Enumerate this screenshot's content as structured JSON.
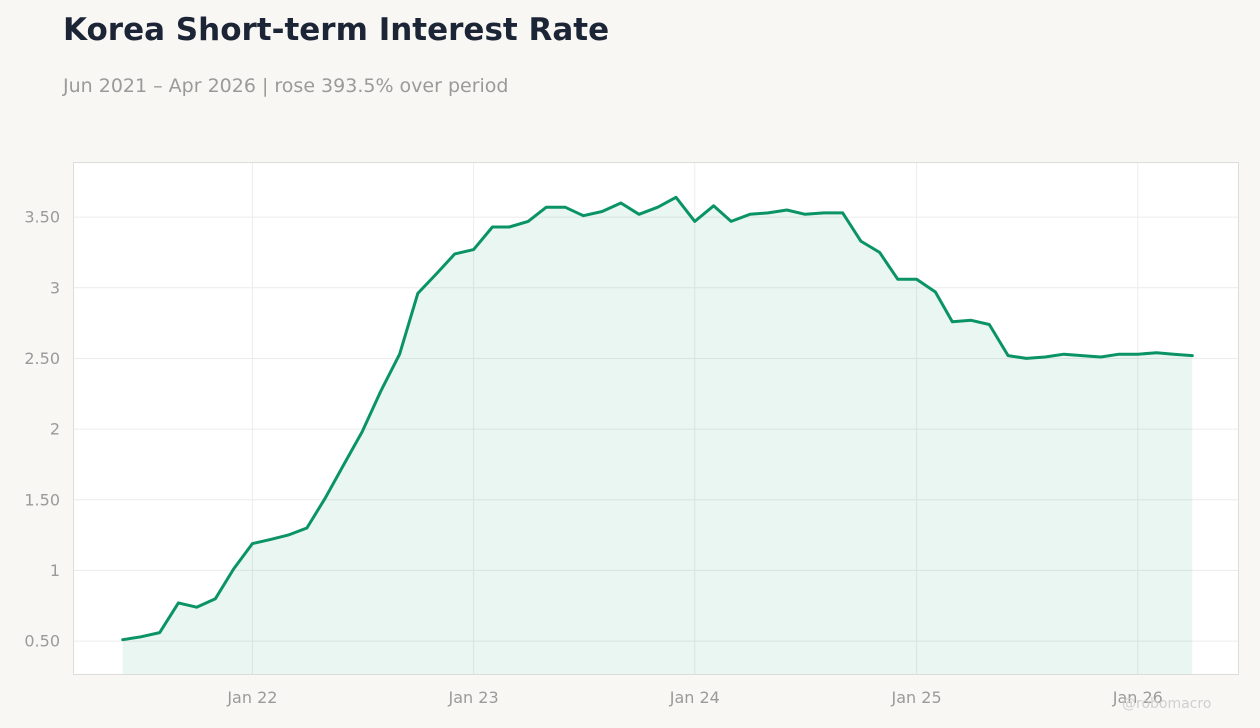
{
  "header": {
    "title": "Korea Short-term Interest Rate",
    "subtitle": "Jun 2021 – Apr 2026 | rose 393.5% over period"
  },
  "watermark": "@robomacro",
  "colors": {
    "line": "#0a9466",
    "fill": "#0a9466",
    "grid": "#ececec",
    "frame": "#dcdcdc"
  },
  "chart_data": {
    "type": "area",
    "title": "Korea Short-term Interest Rate",
    "subtitle": "Jun 2021 – Apr 2026 | rose 393.5% over period",
    "xlabel": "",
    "ylabel": "",
    "ylim": [
      0.26,
      3.89
    ],
    "xlim": [
      "2021-03-11",
      "2026-06-17"
    ],
    "grid": true,
    "x_ticks": [
      {
        "date": "2022-01-01",
        "label": "Jan 22"
      },
      {
        "date": "2023-01-01",
        "label": "Jan 23"
      },
      {
        "date": "2024-01-01",
        "label": "Jan 24"
      },
      {
        "date": "2025-01-01",
        "label": "Jan 25"
      },
      {
        "date": "2026-01-01",
        "label": "Jan 26"
      }
    ],
    "y_ticks": [
      {
        "value": 0.5,
        "label": "0.50"
      },
      {
        "value": 1,
        "label": "1"
      },
      {
        "value": 1.5,
        "label": "1.50"
      },
      {
        "value": 2,
        "label": "2"
      },
      {
        "value": 2.5,
        "label": "2.50"
      },
      {
        "value": 3,
        "label": "3"
      },
      {
        "value": 3.5,
        "label": "3.50"
      }
    ],
    "series": [
      {
        "points": [
          {
            "x": "2021-06-01",
            "y": 0.51
          },
          {
            "x": "2021-07-01",
            "y": 0.53
          },
          {
            "x": "2021-08-01",
            "y": 0.56
          },
          {
            "x": "2021-09-01",
            "y": 0.77
          },
          {
            "x": "2021-10-01",
            "y": 0.74
          },
          {
            "x": "2021-11-01",
            "y": 0.8
          },
          {
            "x": "2021-12-01",
            "y": 1.01
          },
          {
            "x": "2022-01-01",
            "y": 1.19
          },
          {
            "x": "2022-02-01",
            "y": 1.22
          },
          {
            "x": "2022-03-01",
            "y": 1.25
          },
          {
            "x": "2022-04-01",
            "y": 1.3
          },
          {
            "x": "2022-05-01",
            "y": 1.51
          },
          {
            "x": "2022-06-01",
            "y": 1.75
          },
          {
            "x": "2022-07-01",
            "y": 1.98
          },
          {
            "x": "2022-08-01",
            "y": 2.27
          },
          {
            "x": "2022-09-01",
            "y": 2.53
          },
          {
            "x": "2022-10-01",
            "y": 2.96
          },
          {
            "x": "2022-11-01",
            "y": 3.1
          },
          {
            "x": "2022-12-01",
            "y": 3.24
          },
          {
            "x": "2023-01-01",
            "y": 3.27
          },
          {
            "x": "2023-02-01",
            "y": 3.43
          },
          {
            "x": "2023-03-01",
            "y": 3.43
          },
          {
            "x": "2023-04-01",
            "y": 3.47
          },
          {
            "x": "2023-05-01",
            "y": 3.57
          },
          {
            "x": "2023-06-01",
            "y": 3.57
          },
          {
            "x": "2023-07-01",
            "y": 3.51
          },
          {
            "x": "2023-08-01",
            "y": 3.54
          },
          {
            "x": "2023-09-01",
            "y": 3.6
          },
          {
            "x": "2023-10-01",
            "y": 3.52
          },
          {
            "x": "2023-11-01",
            "y": 3.57
          },
          {
            "x": "2023-12-01",
            "y": 3.64
          },
          {
            "x": "2024-01-01",
            "y": 3.47
          },
          {
            "x": "2024-02-01",
            "y": 3.58
          },
          {
            "x": "2024-03-01",
            "y": 3.47
          },
          {
            "x": "2024-04-01",
            "y": 3.52
          },
          {
            "x": "2024-05-01",
            "y": 3.53
          },
          {
            "x": "2024-06-01",
            "y": 3.55
          },
          {
            "x": "2024-07-01",
            "y": 3.52
          },
          {
            "x": "2024-08-01",
            "y": 3.53
          },
          {
            "x": "2024-09-01",
            "y": 3.53
          },
          {
            "x": "2024-10-01",
            "y": 3.33
          },
          {
            "x": "2024-11-01",
            "y": 3.25
          },
          {
            "x": "2024-12-01",
            "y": 3.06
          },
          {
            "x": "2025-01-01",
            "y": 3.06
          },
          {
            "x": "2025-02-01",
            "y": 2.97
          },
          {
            "x": "2025-03-01",
            "y": 2.76
          },
          {
            "x": "2025-04-01",
            "y": 2.77
          },
          {
            "x": "2025-05-01",
            "y": 2.74
          },
          {
            "x": "2025-06-01",
            "y": 2.52
          },
          {
            "x": "2025-07-01",
            "y": 2.5
          },
          {
            "x": "2025-08-01",
            "y": 2.51
          },
          {
            "x": "2025-09-01",
            "y": 2.53
          },
          {
            "x": "2025-10-01",
            "y": 2.52
          },
          {
            "x": "2025-11-01",
            "y": 2.51
          },
          {
            "x": "2025-12-01",
            "y": 2.53
          },
          {
            "x": "2026-01-01",
            "y": 2.53
          },
          {
            "x": "2026-02-01",
            "y": 2.54
          },
          {
            "x": "2026-03-01",
            "y": 2.53
          },
          {
            "x": "2026-04-01",
            "y": 2.52
          }
        ]
      }
    ]
  }
}
